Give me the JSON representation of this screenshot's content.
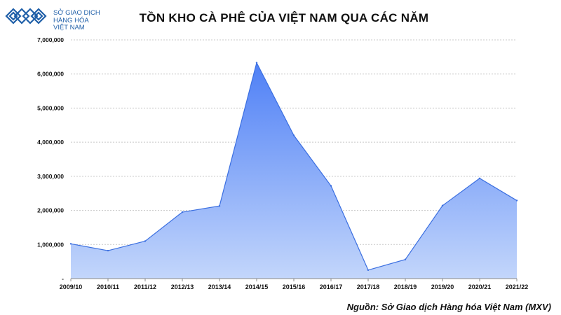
{
  "logo": {
    "name": "logo-mxv",
    "lines": [
      "SỞ GIAO DỊCH",
      "HÀNG HÓA",
      "VIỆT NAM"
    ]
  },
  "source": "Nguồn: Sở Giao dịch Hàng hóa Việt Nam (MXV)",
  "colors": {
    "fill_top": "#4f80f6",
    "fill_bottom": "#c3d6fb",
    "line": "#3b6fe0",
    "grid": "#c8c8c8",
    "text": "#111111",
    "logo": "#1f5fa8"
  },
  "chart_data": {
    "type": "area",
    "title": "TỒN KHO CÀ PHÊ CỦA VIỆT NAM QUA CÁC NĂM",
    "xlabel": "",
    "ylabel": "",
    "categories": [
      "2009/10",
      "2010/11",
      "2011/12",
      "2012/13",
      "2013/14",
      "2014/15",
      "2015/16",
      "2016/17",
      "2017/18",
      "2018/19",
      "2019/20",
      "2020/21",
      "2021/22"
    ],
    "values": [
      1020000,
      820000,
      1100000,
      1950000,
      2130000,
      6330000,
      4200000,
      2720000,
      250000,
      560000,
      2140000,
      2940000,
      2290000
    ],
    "ylim": [
      0,
      7000000
    ],
    "yticks": [
      {
        "value": 0,
        "label": "-"
      },
      {
        "value": 1000000,
        "label": "1,000,000"
      },
      {
        "value": 2000000,
        "label": "2,000,000"
      },
      {
        "value": 3000000,
        "label": "3,000,000"
      },
      {
        "value": 4000000,
        "label": "4,000,000"
      },
      {
        "value": 5000000,
        "label": "5,000,000"
      },
      {
        "value": 6000000,
        "label": "6,000,000"
      },
      {
        "value": 7000000,
        "label": "7,000,000"
      }
    ],
    "grid": true,
    "legend": "none"
  }
}
